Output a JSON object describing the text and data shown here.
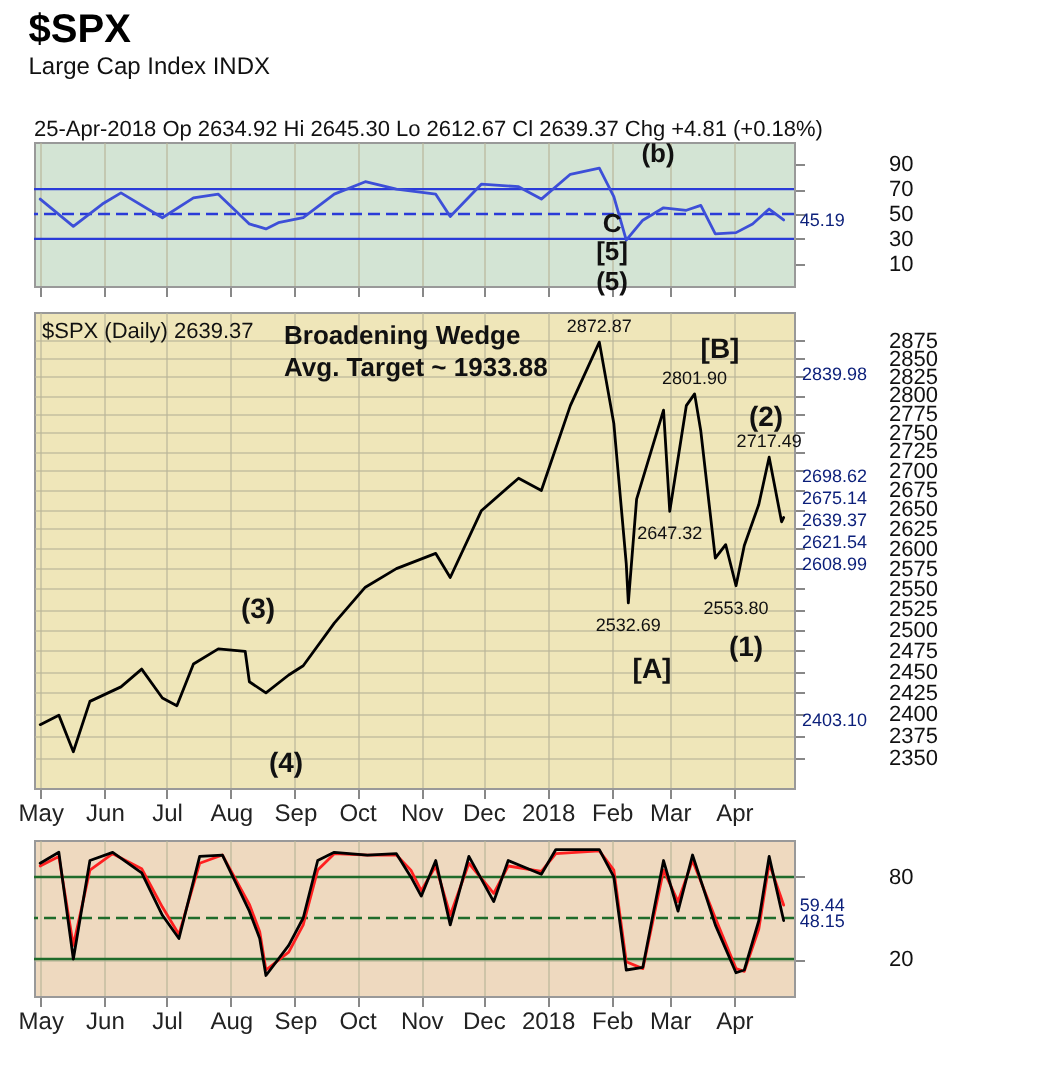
{
  "chart_data": [
    {
      "type": "line",
      "title": "$SPX",
      "subtitle": "Large Cap Index   INDX",
      "xlim": [
        "2017-04-28",
        "2018-04-30"
      ],
      "ylim": [
        -8,
        108
      ],
      "yticks": [
        10,
        30,
        50,
        70,
        90
      ],
      "grid": "x",
      "tick_labels": "y",
      "xticks": [
        {
          "value": "2017-05-01",
          "label": null
        },
        {
          "value": "2017-06-01",
          "label": null
        },
        {
          "value": "2017-07-01",
          "label": null
        },
        {
          "value": "2017-08-01",
          "label": null
        },
        {
          "value": "2017-09-01",
          "label": null
        },
        {
          "value": "2017-10-01",
          "label": null
        },
        {
          "value": "2017-11-01",
          "label": null
        },
        {
          "value": "2017-12-01",
          "label": null
        },
        {
          "value": "2018-01-01",
          "label": null
        },
        {
          "value": "2018-02-01",
          "label": null
        },
        {
          "value": "2018-03-01",
          "label": null
        },
        {
          "value": "2018-04-01",
          "label": null
        }
      ],
      "series": [
        {
          "color": "#3d4fd8",
          "x": [
            "2017-05-01",
            "2017-05-17",
            "2017-05-31",
            "2017-06-09",
            "2017-06-29",
            "2017-07-14",
            "2017-07-26",
            "2017-08-10",
            "2017-08-18",
            "2017-08-24",
            "2017-09-05",
            "2017-09-20",
            "2017-10-05",
            "2017-10-20",
            "2017-11-08",
            "2017-11-15",
            "2017-11-30",
            "2017-12-18",
            "2017-12-29",
            "2018-01-12",
            "2018-01-26",
            "2018-02-02",
            "2018-02-08",
            "2018-02-16",
            "2018-02-26",
            "2018-03-09",
            "2018-03-16",
            "2018-03-23",
            "2018-04-02",
            "2018-04-10",
            "2018-04-18",
            "2018-04-25"
          ],
          "values": [
            62,
            40,
            58,
            67,
            47,
            63,
            66,
            42,
            38,
            43,
            47,
            66,
            76,
            70,
            66,
            48,
            74,
            72,
            62,
            82,
            87,
            64,
            29,
            45,
            55,
            53,
            57,
            34,
            35,
            42,
            54,
            45.19
          ]
        }
      ],
      "ref_lines": [
        {
          "axis": "y",
          "value": 70,
          "color": "#2a3bd8"
        },
        {
          "axis": "y",
          "value": 50,
          "color": "#2a3bd8",
          "line_style": "dashed"
        },
        {
          "axis": "y",
          "value": 30,
          "color": "#2a3bd8"
        }
      ],
      "annotations": [
        "25-Apr-2018   Op 2634.92  Hi 2645.30  Lo 2612.67  Cl 2639.37  Chg +4.81 (+0.18%)",
        "(b)",
        "C",
        "[5]",
        "(5)",
        {
          "text": "45.19",
          "x": "2018-04-25",
          "y": 45.19
        }
      ]
    },
    {
      "type": "line",
      "log": true,
      "xlim": [
        "2017-04-28",
        "2018-04-30"
      ],
      "xticks": [
        {
          "value": "2017-05-01",
          "label": "May"
        },
        {
          "value": "2017-06-01",
          "label": "Jun"
        },
        {
          "value": "2017-07-01",
          "label": "Jul"
        },
        {
          "value": "2017-08-01",
          "label": "Aug"
        },
        {
          "value": "2017-09-01",
          "label": "Sep"
        },
        {
          "value": "2017-10-01",
          "label": "Oct"
        },
        {
          "value": "2017-11-01",
          "label": "Nov"
        },
        {
          "value": "2017-12-01",
          "label": "Dec"
        },
        {
          "value": "2018-01-01",
          "label": "2018"
        },
        {
          "value": "2018-02-01",
          "label": "Feb"
        },
        {
          "value": "2018-03-01",
          "label": "Mar"
        },
        {
          "value": "2018-04-01",
          "label": "Apr"
        }
      ],
      "ylim": [
        2316,
        2915
      ],
      "yticks": [
        2350,
        2375,
        2400,
        2425,
        2450,
        2475,
        2500,
        2525,
        2550,
        2575,
        2600,
        2625,
        2650,
        2675,
        2700,
        2725,
        2750,
        2775,
        2800,
        2825,
        2850,
        2875
      ],
      "grid": true,
      "series": [
        {
          "color": "#000000",
          "x": [
            "2017-05-01",
            "2017-05-10",
            "2017-05-17",
            "2017-05-25",
            "2017-06-09",
            "2017-06-19",
            "2017-06-29",
            "2017-07-06",
            "2017-07-14",
            "2017-07-26",
            "2017-08-08",
            "2017-08-10",
            "2017-08-18",
            "2017-08-29",
            "2017-09-05",
            "2017-09-20",
            "2017-10-05",
            "2017-10-20",
            "2017-11-08",
            "2017-11-15",
            "2017-11-30",
            "2017-12-18",
            "2017-12-29",
            "2018-01-12",
            "2018-01-26",
            "2018-02-02",
            "2018-02-08",
            "2018-02-09",
            "2018-02-13",
            "2018-02-26",
            "2018-03-01",
            "2018-03-09",
            "2018-03-13",
            "2018-03-16",
            "2018-03-23",
            "2018-03-28",
            "2018-04-02",
            "2018-04-06",
            "2018-04-13",
            "2018-04-18",
            "2018-04-24",
            "2018-04-25"
          ],
          "values": [
            2388,
            2399,
            2357,
            2415,
            2432,
            2453,
            2419,
            2410,
            2459,
            2477,
            2474,
            2438,
            2425,
            2446,
            2457,
            2508,
            2552,
            2575,
            2594,
            2564,
            2648,
            2690,
            2674,
            2786,
            2872.87,
            2762,
            2581,
            2532.69,
            2663,
            2780,
            2647.32,
            2786,
            2801.9,
            2752,
            2588,
            2605,
            2553.8,
            2604,
            2656,
            2717.49,
            2634,
            2639.37
          ]
        }
      ],
      "annotations": [
        "$SPX (Daily) 2639.37",
        "Broadening Wedge",
        "Avg. Target ~ 1933.88",
        "(3)",
        "(4)",
        "[A]",
        "(1)",
        "[B]",
        "(2)",
        "2839.98",
        "2698.62",
        "2675.14",
        "2639.37",
        "2621.54",
        "2608.99",
        "2403.10",
        {
          "text": "2872.87",
          "x": "2018-01-26",
          "y": 2872.87
        },
        {
          "text": "2801.90",
          "x": "2018-03-13",
          "y": 2801.9
        },
        {
          "text": "2717.49",
          "x": "2018-04-18",
          "y": 2717.49
        },
        {
          "text": "2647.32",
          "x": "2018-03-01",
          "y": 2647.32
        },
        {
          "text": "2532.69",
          "x": "2018-02-09",
          "y": 2532.69
        },
        {
          "text": "2553.80",
          "x": "2018-04-02",
          "y": 2553.8
        }
      ]
    },
    {
      "type": "line",
      "xlim": [
        "2017-04-28",
        "2018-04-30"
      ],
      "xticks": [
        {
          "value": "2017-05-01",
          "label": "May"
        },
        {
          "value": "2017-06-01",
          "label": "Jun"
        },
        {
          "value": "2017-07-01",
          "label": "Jul"
        },
        {
          "value": "2017-08-01",
          "label": "Aug"
        },
        {
          "value": "2017-09-01",
          "label": "Sep"
        },
        {
          "value": "2017-10-01",
          "label": "Oct"
        },
        {
          "value": "2017-11-01",
          "label": "Nov"
        },
        {
          "value": "2017-12-01",
          "label": "Dec"
        },
        {
          "value": "2018-01-01",
          "label": "2018"
        },
        {
          "value": "2018-02-01",
          "label": "Feb"
        },
        {
          "value": "2018-03-01",
          "label": "Mar"
        },
        {
          "value": "2018-04-01",
          "label": "Apr"
        }
      ],
      "ylim": [
        -7,
        107
      ],
      "yticks": [
        20,
        80
      ],
      "grid": true,
      "series": [
        {
          "color": "#ff2020",
          "x": [
            "2017-05-01",
            "2017-05-10",
            "2017-05-17",
            "2017-05-25",
            "2017-06-05",
            "2017-06-19",
            "2017-06-29",
            "2017-07-07",
            "2017-07-17",
            "2017-07-28",
            "2017-08-10",
            "2017-08-15",
            "2017-08-18",
            "2017-08-29",
            "2017-09-05",
            "2017-09-12",
            "2017-09-20",
            "2017-10-06",
            "2017-10-20",
            "2017-10-27",
            "2017-11-01",
            "2017-11-08",
            "2017-11-15",
            "2017-11-24",
            "2017-12-06",
            "2017-12-13",
            "2017-12-29",
            "2018-01-05",
            "2018-01-26",
            "2018-02-02",
            "2018-02-08",
            "2018-02-16",
            "2018-02-26",
            "2018-03-05",
            "2018-03-12",
            "2018-03-23",
            "2018-04-02",
            "2018-04-06",
            "2018-04-13",
            "2018-04-18",
            "2018-04-25"
          ],
          "values": [
            88,
            95,
            30,
            85,
            97,
            86,
            58,
            38,
            90,
            96,
            60,
            40,
            12,
            25,
            45,
            85,
            97,
            96,
            96,
            85,
            70,
            88,
            52,
            90,
            68,
            88,
            84,
            97,
            99,
            85,
            18,
            13,
            85,
            62,
            92,
            50,
            13,
            11,
            42,
            90,
            59.44
          ]
        },
        {
          "color": "#000000",
          "x": [
            "2017-05-01",
            "2017-05-10",
            "2017-05-17",
            "2017-05-25",
            "2017-06-05",
            "2017-06-19",
            "2017-06-29",
            "2017-07-07",
            "2017-07-17",
            "2017-07-28",
            "2017-08-10",
            "2017-08-15",
            "2017-08-18",
            "2017-08-29",
            "2017-09-05",
            "2017-09-12",
            "2017-09-20",
            "2017-10-06",
            "2017-10-20",
            "2017-10-27",
            "2017-11-01",
            "2017-11-08",
            "2017-11-15",
            "2017-11-24",
            "2017-12-06",
            "2017-12-13",
            "2017-12-29",
            "2018-01-05",
            "2018-01-26",
            "2018-02-02",
            "2018-02-08",
            "2018-02-16",
            "2018-02-26",
            "2018-03-05",
            "2018-03-12",
            "2018-03-23",
            "2018-04-02",
            "2018-04-06",
            "2018-04-13",
            "2018-04-18",
            "2018-04-25"
          ],
          "values": [
            90,
            98,
            20,
            92,
            98,
            83,
            52,
            35,
            95,
            96,
            55,
            35,
            8,
            30,
            50,
            92,
            98,
            96,
            97,
            80,
            66,
            92,
            45,
            95,
            62,
            92,
            82,
            100,
            100,
            80,
            12,
            14,
            92,
            55,
            96,
            45,
            10,
            12,
            48,
            95,
            48.15
          ]
        }
      ],
      "ref_lines": [
        {
          "axis": "y",
          "value": 80,
          "color": "#1f6b2a"
        },
        {
          "axis": "y",
          "value": 50,
          "color": "#1f6b2a",
          "line_style": "dashed"
        },
        {
          "axis": "y",
          "value": 20,
          "color": "#1f6b2a"
        }
      ],
      "annotations": [
        {
          "text": "59.44",
          "x": "2018-04-25",
          "y": 59.44
        },
        {
          "text": "48.15",
          "x": "2018-04-25",
          "y": 48.15
        }
      ]
    }
  ]
}
